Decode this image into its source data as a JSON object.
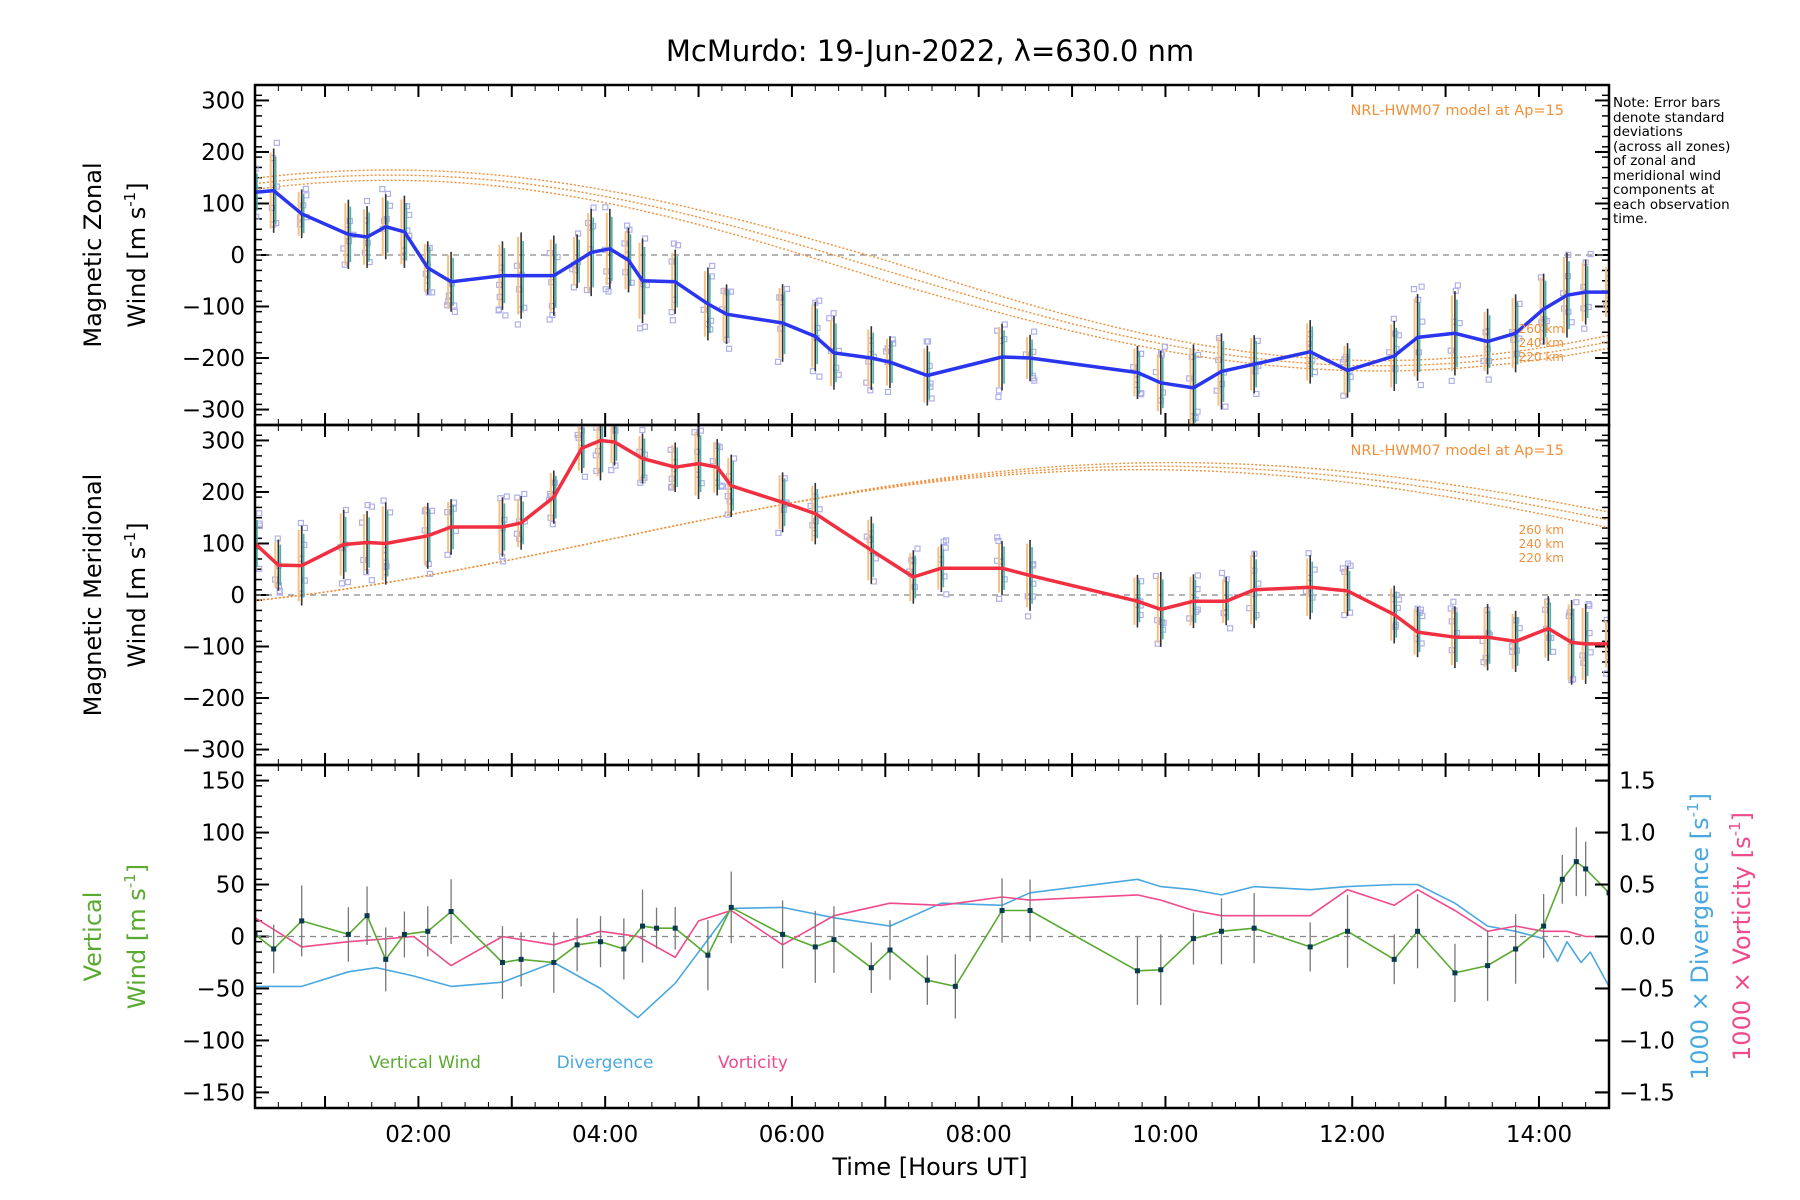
{
  "title": "McMurdo: 19-Jun-2022, λ=630.0 nm",
  "note_lines": [
    "Note: Error bars",
    "denote standard",
    "deviations",
    "(across all zones)",
    "of zonal and",
    "meridional wind",
    "components at",
    "each observation",
    "time."
  ],
  "colors": {
    "zonal": "#2a35ee",
    "meridional": "#f03040",
    "model": "#f0903a",
    "vertical": "#5aaa32",
    "divergence": "#4aa8e0",
    "vorticity": "#f04a8c",
    "scatter": "#b0b0e8",
    "errorbar": "#555555"
  },
  "chart_data": [
    {
      "type": "line",
      "name": "zonal",
      "ylabel_line1": "Magnetic Zonal",
      "ylabel_line2": "Wind [m s",
      "ylabel_sup": "-1",
      "ylabel_end": "]",
      "ylim": [
        -330,
        330
      ],
      "yticks": [
        -300,
        -200,
        -100,
        0,
        100,
        200,
        300
      ],
      "xlim": [
        0.25,
        14.75
      ],
      "model_label": "NRL-HWM07 model at Ap=15",
      "altitude_labels": [
        "260 km",
        "240 km",
        "220 km"
      ],
      "x": [
        0.25,
        0.45,
        0.75,
        1.25,
        1.45,
        1.65,
        1.85,
        2.1,
        2.35,
        2.9,
        3.1,
        3.45,
        3.7,
        3.85,
        4.05,
        4.25,
        4.4,
        4.75,
        5.1,
        5.3,
        5.9,
        6.25,
        6.45,
        6.85,
        7.05,
        7.45,
        8.25,
        8.55,
        9.7,
        9.95,
        10.3,
        10.6,
        10.95,
        11.55,
        11.95,
        12.45,
        12.7,
        13.1,
        13.45,
        13.75,
        14.05,
        14.3,
        14.5,
        14.75
      ],
      "values": [
        122,
        125,
        80,
        40,
        35,
        55,
        45,
        -25,
        -52,
        -40,
        -40,
        -40,
        -12,
        5,
        12,
        -10,
        -50,
        -52,
        -95,
        -115,
        -132,
        -158,
        -190,
        -200,
        -208,
        -234,
        -198,
        -200,
        -228,
        -248,
        -258,
        -226,
        -212,
        -188,
        -224,
        -196,
        -160,
        -152,
        -168,
        -152,
        -105,
        -78,
        -72,
        -72
      ]
    },
    {
      "type": "line",
      "name": "meridional",
      "ylabel_line1": "Magnetic Meridional",
      "ylabel_line2": "Wind [m s",
      "ylabel_sup": "-1",
      "ylabel_end": "]",
      "ylim": [
        -330,
        330
      ],
      "yticks": [
        -300,
        -200,
        -100,
        0,
        100,
        200,
        300
      ],
      "xlim": [
        0.25,
        14.75
      ],
      "model_label": "NRL-HWM07 model at Ap=15",
      "altitude_labels": [
        "260 km",
        "240 km",
        "220 km"
      ],
      "x": [
        0.25,
        0.5,
        0.75,
        1.2,
        1.45,
        1.65,
        2.1,
        2.35,
        2.9,
        3.1,
        3.45,
        3.75,
        3.95,
        4.1,
        4.4,
        4.75,
        5.0,
        5.2,
        5.35,
        5.9,
        6.25,
        6.85,
        7.3,
        7.6,
        8.25,
        8.55,
        9.7,
        9.95,
        10.3,
        10.65,
        10.95,
        11.55,
        11.95,
        12.45,
        12.7,
        13.1,
        13.45,
        13.75,
        14.1,
        14.35,
        14.5,
        14.75
      ],
      "values": [
        100,
        58,
        57,
        98,
        102,
        100,
        115,
        132,
        132,
        140,
        190,
        285,
        300,
        297,
        265,
        248,
        255,
        248,
        212,
        180,
        158,
        87,
        35,
        52,
        52,
        38,
        -12,
        -28,
        -12,
        -12,
        10,
        15,
        8,
        -38,
        -72,
        -82,
        -82,
        -90,
        -65,
        -92,
        -95,
        -95
      ]
    },
    {
      "type": "line",
      "name": "vertical",
      "ylabel_line1": "Vertical",
      "ylabel_line2": "Wind [m s",
      "ylabel_sup": "-1",
      "ylabel_end": "]",
      "y2label_line1": "1000 × Divergence [s",
      "y2label_line2": "1000 × Vorticity [s",
      "y2label_sup": "-1",
      "y2label_end": "]",
      "ylim": [
        -165,
        165
      ],
      "yticks": [
        -150,
        -100,
        -50,
        0,
        50,
        100,
        150
      ],
      "y2lim": [
        -1.65,
        1.65
      ],
      "y2ticks": [
        -1.5,
        -1.0,
        -0.5,
        0.0,
        0.5,
        1.0,
        1.5
      ],
      "y2ticklabels": [
        "−1.5",
        "−1.0",
        "−0.5",
        "0.0",
        "0.5",
        "1.0",
        "1.5"
      ],
      "xlim": [
        0.25,
        14.75
      ],
      "xticks": [
        2,
        4,
        6,
        8,
        10,
        12,
        14
      ],
      "xticklabels": [
        "02:00",
        "04:00",
        "06:00",
        "08:00",
        "10:00",
        "12:00",
        "14:00"
      ],
      "xlabel": "Time [Hours UT]",
      "legend": [
        "Vertical Wind",
        "Divergence",
        "Vorticity"
      ],
      "series": [
        {
          "name": "Vertical Wind",
          "x": [
            0.25,
            0.45,
            0.75,
            1.25,
            1.45,
            1.65,
            1.85,
            2.1,
            2.35,
            2.9,
            3.1,
            3.45,
            3.7,
            3.95,
            4.2,
            4.4,
            4.55,
            4.75,
            5.1,
            5.35,
            5.9,
            6.25,
            6.45,
            6.85,
            7.05,
            7.45,
            7.75,
            8.25,
            8.55,
            9.7,
            9.95,
            10.3,
            10.6,
            10.95,
            11.55,
            11.95,
            12.45,
            12.7,
            13.1,
            13.45,
            13.75,
            14.05,
            14.25,
            14.4,
            14.5,
            14.75
          ],
          "values": [
            2,
            -12,
            15,
            2,
            20,
            -22,
            2,
            5,
            24,
            -25,
            -22,
            -25,
            -8,
            -5,
            -12,
            10,
            8,
            8,
            -18,
            28,
            2,
            -10,
            -3,
            -30,
            -13,
            -42,
            -48,
            25,
            25,
            -33,
            -32,
            -2,
            5,
            8,
            -10,
            5,
            -22,
            5,
            -35,
            -28,
            -12,
            10,
            55,
            72,
            65,
            42
          ]
        },
        {
          "name": "Divergence",
          "x": [
            0.25,
            0.75,
            1.25,
            1.55,
            1.95,
            2.35,
            2.9,
            3.45,
            3.95,
            4.35,
            4.75,
            5.35,
            5.9,
            6.45,
            7.05,
            7.6,
            8.25,
            8.55,
            9.7,
            9.95,
            10.3,
            10.6,
            10.95,
            11.55,
            11.95,
            12.45,
            12.7,
            13.1,
            13.45,
            13.75,
            14.05,
            14.2,
            14.3,
            14.45,
            14.55,
            14.75
          ],
          "values": [
            -0.48,
            -0.48,
            -0.34,
            -0.3,
            -0.38,
            -0.48,
            -0.44,
            -0.25,
            -0.5,
            -0.78,
            -0.45,
            0.27,
            0.28,
            0.18,
            0.1,
            0.32,
            0.3,
            0.42,
            0.55,
            0.48,
            0.45,
            0.4,
            0.48,
            0.45,
            0.48,
            0.5,
            0.5,
            0.32,
            0.1,
            0.05,
            -0.02,
            -0.24,
            -0.05,
            -0.25,
            -0.15,
            -0.48
          ]
        },
        {
          "name": "Vorticity",
          "x": [
            0.25,
            0.75,
            1.25,
            1.55,
            1.95,
            2.35,
            2.9,
            3.45,
            3.95,
            4.35,
            4.75,
            5.0,
            5.35,
            5.9,
            6.45,
            7.05,
            7.6,
            8.25,
            8.55,
            9.7,
            9.95,
            10.3,
            10.6,
            10.95,
            11.55,
            11.95,
            12.45,
            12.7,
            13.1,
            13.45,
            13.75,
            14.05,
            14.3,
            14.5,
            14.75
          ],
          "values": [
            0.18,
            -0.1,
            -0.05,
            -0.03,
            0.0,
            -0.28,
            0.0,
            -0.08,
            0.05,
            0.0,
            -0.2,
            0.15,
            0.25,
            -0.08,
            0.2,
            0.32,
            0.3,
            0.38,
            0.35,
            0.4,
            0.35,
            0.25,
            0.2,
            0.2,
            0.2,
            0.45,
            0.3,
            0.45,
            0.25,
            0.05,
            0.1,
            0.05,
            0.05,
            0.0,
            0.0
          ]
        }
      ]
    }
  ]
}
